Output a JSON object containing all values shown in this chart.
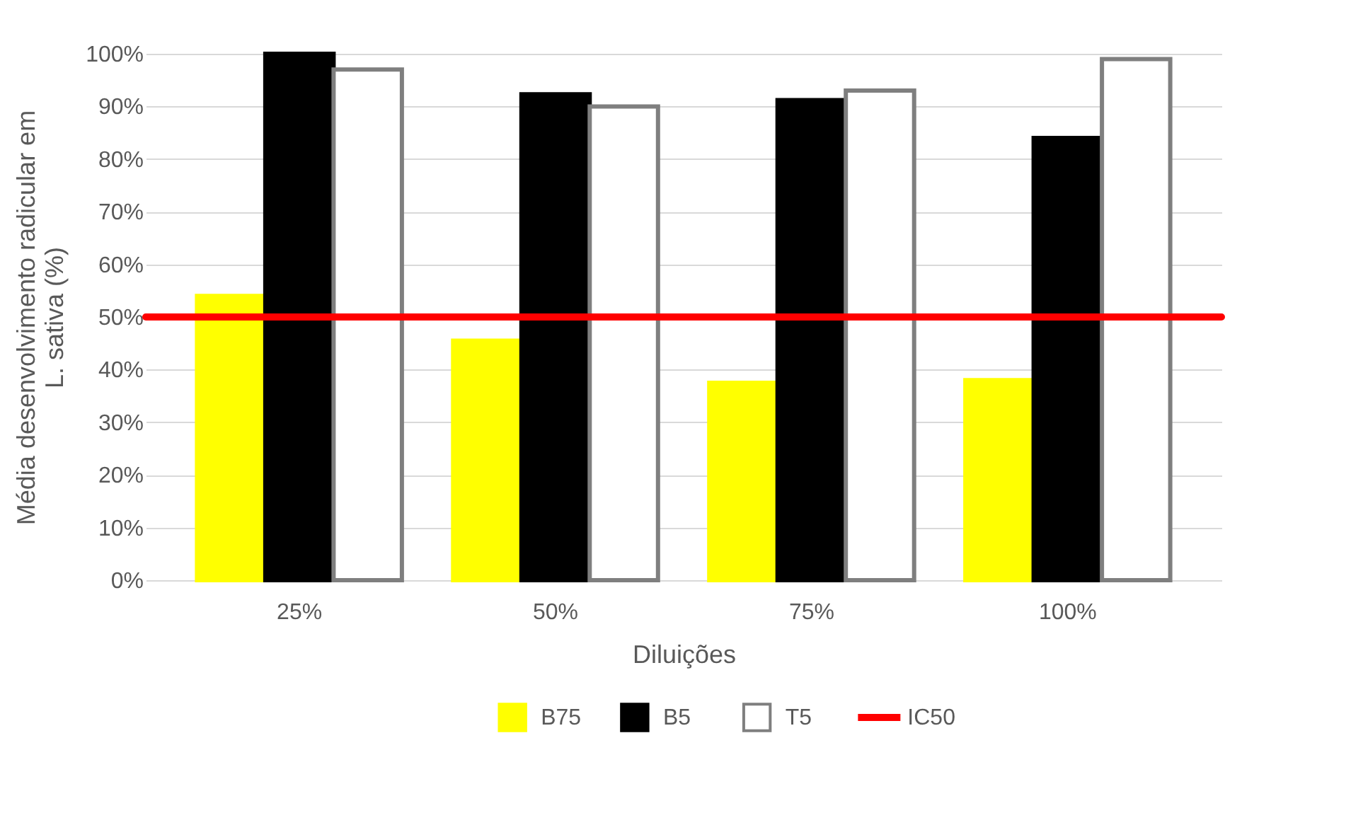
{
  "chart_data": {
    "type": "bar",
    "xlabel": "Diluições",
    "ylabel": "Média desenvolvimento radicular em L. sativa (%)",
    "categories": [
      "25%",
      "50%",
      "75%",
      "100%"
    ],
    "series": [
      {
        "name": "B75",
        "color": "#ffff00",
        "values": [
          54,
          45.5,
          37.5,
          38
        ]
      },
      {
        "name": "B5",
        "color": "#000000",
        "values": [
          100,
          92.3,
          91.2,
          84
        ]
      },
      {
        "name": "T5",
        "color": "#ffffff",
        "values": [
          97,
          90,
          93,
          99
        ]
      }
    ],
    "ref_lines": [
      {
        "axis": "y",
        "value": 50,
        "label": "IC50",
        "color": "#ff0000"
      }
    ],
    "ylim": [
      0,
      100
    ],
    "yticks": [
      {
        "value": 0,
        "label": "0%"
      },
      {
        "value": 10,
        "label": "10%"
      },
      {
        "value": 20,
        "label": "20%"
      },
      {
        "value": 30,
        "label": "30%"
      },
      {
        "value": 40,
        "label": "40%"
      },
      {
        "value": 50,
        "label": "50%"
      },
      {
        "value": 60,
        "label": "60%"
      },
      {
        "value": 70,
        "label": "70%"
      },
      {
        "value": 80,
        "label": "80%"
      },
      {
        "value": 90,
        "label": "90%"
      },
      {
        "value": 100,
        "label": "100%"
      }
    ],
    "grid": "y",
    "legend": "bottom"
  }
}
